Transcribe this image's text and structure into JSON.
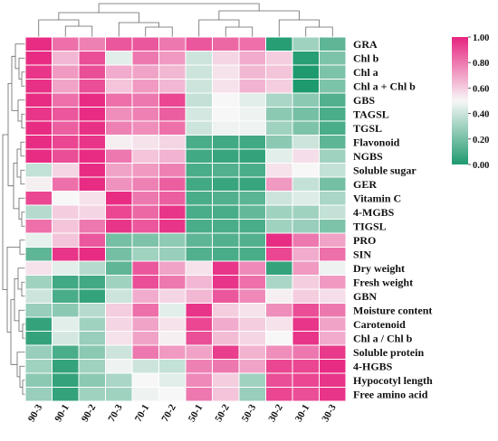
{
  "chart_data": {
    "type": "heatmap",
    "title": "",
    "xlabel": "",
    "ylabel": "",
    "columns": [
      "90-3",
      "90-1",
      "90-2",
      "70-3",
      "70-1",
      "70-2",
      "50-1",
      "50-2",
      "50-3",
      "30-2",
      "30-1",
      "30-3"
    ],
    "rows": [
      "GRA",
      "Chl b",
      "Chl a",
      "Chl a + Chl b",
      "GBS",
      "TAGSL",
      "TGSL",
      "Flavonoid",
      "NGBS",
      "Soluble sugar",
      "GER",
      "Vitamin C",
      "4-MGBS",
      "TIGSL",
      "PRO",
      "SIN",
      "Dry weight",
      "Fresh weight",
      "GBN",
      "Moisture content",
      "Carotenoid",
      "Chl a / Chl b",
      "Soluble protein",
      "4-HGBS",
      "Hypocotyl length",
      "Free amino acid"
    ],
    "values": [
      [
        0.98,
        0.82,
        0.78,
        0.88,
        0.88,
        0.8,
        0.88,
        0.84,
        0.82,
        0.02,
        0.3,
        0.15
      ],
      [
        0.98,
        0.65,
        0.9,
        0.45,
        0.8,
        0.72,
        0.4,
        0.58,
        0.68,
        0.6,
        0.02,
        0.22
      ],
      [
        0.96,
        0.72,
        0.9,
        0.68,
        0.7,
        0.65,
        0.4,
        0.55,
        0.65,
        0.62,
        0.0,
        0.22
      ],
      [
        0.97,
        0.7,
        0.9,
        0.62,
        0.72,
        0.65,
        0.4,
        0.55,
        0.66,
        0.6,
        0.0,
        0.22
      ],
      [
        0.98,
        0.82,
        0.98,
        0.82,
        0.8,
        0.92,
        0.38,
        0.5,
        0.45,
        0.32,
        0.25,
        0.12
      ],
      [
        0.96,
        0.88,
        0.98,
        0.75,
        0.78,
        0.86,
        0.42,
        0.5,
        0.48,
        0.25,
        0.2,
        0.1
      ],
      [
        0.98,
        0.86,
        0.97,
        0.78,
        0.75,
        0.82,
        0.4,
        0.48,
        0.48,
        0.3,
        0.22,
        0.1
      ],
      [
        0.98,
        0.92,
        0.96,
        0.52,
        0.55,
        0.58,
        0.1,
        0.08,
        0.08,
        0.25,
        0.4,
        0.15
      ],
      [
        0.98,
        0.9,
        0.98,
        0.8,
        0.62,
        0.66,
        0.08,
        0.06,
        0.05,
        0.45,
        0.56,
        0.3
      ],
      [
        0.38,
        0.58,
        0.98,
        0.7,
        0.72,
        0.78,
        0.1,
        0.12,
        0.1,
        0.55,
        0.5,
        0.38
      ],
      [
        0.52,
        0.82,
        0.98,
        0.74,
        0.78,
        0.86,
        0.08,
        0.06,
        0.06,
        0.72,
        0.38,
        0.2
      ],
      [
        0.92,
        0.5,
        0.55,
        0.98,
        0.8,
        0.86,
        0.1,
        0.12,
        0.14,
        0.4,
        0.44,
        0.32
      ],
      [
        0.35,
        0.6,
        0.58,
        0.92,
        0.84,
        0.96,
        0.1,
        0.1,
        0.16,
        0.3,
        0.3,
        0.38
      ],
      [
        0.82,
        0.62,
        0.8,
        0.96,
        0.88,
        0.96,
        0.1,
        0.1,
        0.1,
        0.3,
        0.28,
        0.22
      ],
      [
        0.46,
        0.62,
        0.88,
        0.2,
        0.22,
        0.26,
        0.15,
        0.12,
        0.12,
        0.98,
        0.8,
        0.7
      ],
      [
        0.15,
        0.96,
        0.98,
        0.2,
        0.3,
        0.28,
        0.12,
        0.1,
        0.1,
        0.92,
        0.68,
        0.82
      ],
      [
        0.55,
        0.45,
        0.35,
        0.15,
        0.88,
        0.7,
        0.55,
        0.96,
        0.76,
        0.05,
        0.72,
        0.48
      ],
      [
        0.3,
        0.08,
        0.08,
        0.3,
        0.9,
        0.8,
        0.65,
        0.96,
        0.82,
        0.32,
        0.6,
        0.72
      ],
      [
        0.4,
        0.1,
        0.05,
        0.4,
        0.68,
        0.58,
        0.65,
        0.88,
        0.76,
        0.52,
        0.6,
        0.56
      ],
      [
        0.28,
        0.25,
        0.35,
        0.6,
        0.82,
        0.45,
        0.96,
        0.6,
        0.55,
        0.75,
        0.9,
        0.8
      ],
      [
        0.05,
        0.45,
        0.3,
        0.58,
        0.7,
        0.55,
        0.92,
        0.68,
        0.6,
        0.55,
        0.96,
        0.7
      ],
      [
        0.05,
        0.42,
        0.28,
        0.55,
        0.7,
        0.52,
        0.9,
        0.64,
        0.58,
        0.5,
        0.96,
        0.68
      ],
      [
        0.28,
        0.1,
        0.25,
        0.4,
        0.8,
        0.72,
        0.7,
        0.94,
        0.66,
        0.75,
        0.8,
        0.95
      ],
      [
        0.3,
        0.05,
        0.3,
        0.48,
        0.4,
        0.38,
        0.78,
        0.8,
        0.7,
        0.92,
        0.92,
        0.98
      ],
      [
        0.25,
        0.05,
        0.25,
        0.32,
        0.5,
        0.45,
        0.76,
        0.6,
        0.3,
        0.9,
        0.92,
        0.96
      ],
      [
        0.28,
        0.05,
        0.3,
        0.3,
        0.48,
        0.5,
        0.8,
        0.62,
        0.28,
        0.92,
        0.9,
        0.96
      ]
    ],
    "color_scale": {
      "min": 0.0,
      "max": 1.0,
      "low_color": "#1e9a6e",
      "mid_color": "#f7f7f7",
      "high_color": "#e7247f",
      "ticks": [
        "1.00",
        "0.80",
        "0.60",
        "0.40",
        "0.20",
        "0.00"
      ]
    },
    "legend_position": "right",
    "dendrograms": [
      "top",
      "left"
    ],
    "grid": false
  }
}
